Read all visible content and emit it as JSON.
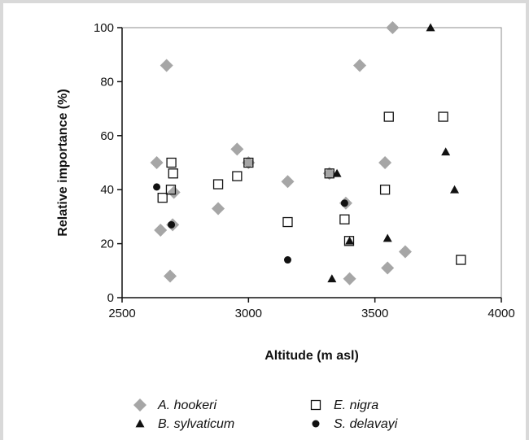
{
  "chart_data": {
    "type": "scatter",
    "title": "",
    "xlabel": "Altitude (m asl)",
    "ylabel": "Relative importance (%)",
    "xlim": [
      2500,
      4000
    ],
    "ylim": [
      0,
      100
    ],
    "x_ticks": [
      "2500",
      "3000",
      "3500",
      "4000"
    ],
    "y_ticks": [
      "0",
      "20",
      "40",
      "60",
      "80",
      "100"
    ],
    "grid": false,
    "legend_position": "bottom",
    "series": [
      {
        "name": "A. hookeri",
        "marker": "diamond",
        "color": "#a6a6a6",
        "points": [
          [
            2637,
            50
          ],
          [
            2652,
            25
          ],
          [
            2676,
            86
          ],
          [
            2690,
            8
          ],
          [
            2700,
            27
          ],
          [
            2705,
            39
          ],
          [
            2880,
            33
          ],
          [
            2955,
            55
          ],
          [
            3000,
            50
          ],
          [
            3155,
            43
          ],
          [
            3320,
            46
          ],
          [
            3385,
            35
          ],
          [
            3400,
            7
          ],
          [
            3440,
            86
          ],
          [
            3540,
            50
          ],
          [
            3550,
            11
          ],
          [
            3570,
            100
          ],
          [
            3620,
            17
          ]
        ]
      },
      {
        "name": "E. nigra",
        "marker": "open-square",
        "color": "#111111",
        "points": [
          [
            2660,
            37
          ],
          [
            2693,
            40
          ],
          [
            2695,
            50
          ],
          [
            2702,
            46
          ],
          [
            2880,
            42
          ],
          [
            2955,
            45
          ],
          [
            3000,
            50
          ],
          [
            3155,
            28
          ],
          [
            3320,
            46
          ],
          [
            3380,
            29
          ],
          [
            3398,
            21
          ],
          [
            3540,
            40
          ],
          [
            3555,
            67
          ],
          [
            3770,
            67
          ],
          [
            3840,
            14
          ]
        ]
      },
      {
        "name": "B. sylvaticum",
        "marker": "triangle",
        "color": "#111111",
        "points": [
          [
            3330,
            7
          ],
          [
            3350,
            46
          ],
          [
            3400,
            21
          ],
          [
            3550,
            22
          ],
          [
            3720,
            100
          ],
          [
            3780,
            54
          ],
          [
            3815,
            40
          ]
        ]
      },
      {
        "name": "S. delavayi",
        "marker": "circle",
        "color": "#111111",
        "points": [
          [
            2637,
            41
          ],
          [
            2695,
            27
          ],
          [
            3155,
            14
          ],
          [
            3380,
            35
          ]
        ]
      }
    ]
  }
}
